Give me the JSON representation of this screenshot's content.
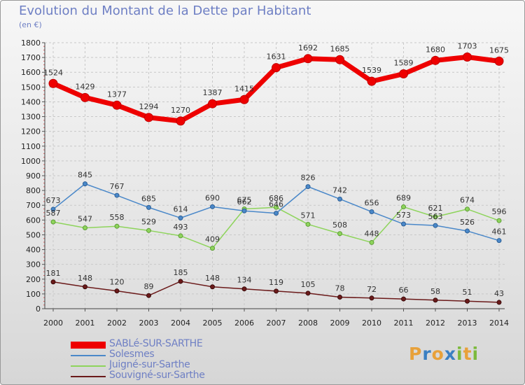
{
  "title": "Evolution du Montant de la Dette par Habitant",
  "unit": "(en €)",
  "logo": {
    "letters": [
      "P",
      "r",
      "o",
      "x",
      "i",
      "t",
      "i"
    ],
    "colors": [
      "#e8a13a",
      "#3a7fc2",
      "#e8a13a",
      "#3a7fc2",
      "#7cba3c",
      "#e8a13a",
      "#7cba3c"
    ]
  },
  "chart_data": {
    "type": "line",
    "x": [
      "2000",
      "2001",
      "2002",
      "2003",
      "2004",
      "2005",
      "2006",
      "2007",
      "2008",
      "2009",
      "2010",
      "2011",
      "2012",
      "2013",
      "2014"
    ],
    "ylim": [
      0,
      1800
    ],
    "yticks": [
      0,
      100,
      200,
      300,
      400,
      500,
      600,
      700,
      800,
      900,
      1000,
      1100,
      1200,
      1300,
      1400,
      1500,
      1600,
      1700,
      1800
    ],
    "grid": true,
    "legend_position": "bottom-left",
    "series": [
      {
        "name": "SABLé-SUR-SARTHE",
        "color": "#ee0000",
        "values": [
          1524,
          1429,
          1377,
          1294,
          1270,
          1387,
          1415,
          1631,
          1692,
          1685,
          1539,
          1589,
          1680,
          1703,
          1675
        ]
      },
      {
        "name": "Solesmes",
        "color": "#4a88c9",
        "values": [
          673,
          845,
          767,
          685,
          614,
          690,
          662,
          646,
          826,
          742,
          656,
          573,
          563,
          526,
          461
        ]
      },
      {
        "name": "Juigné-sur-Sarthe",
        "color": "#8ed45c",
        "values": [
          587,
          547,
          558,
          529,
          493,
          409,
          675,
          686,
          571,
          508,
          448,
          689,
          621,
          674,
          596
        ]
      },
      {
        "name": "Souvigné-sur-Sarthe",
        "color": "#6b1a1a",
        "values": [
          181,
          148,
          120,
          89,
          185,
          148,
          134,
          119,
          105,
          78,
          72,
          66,
          58,
          51,
          43
        ]
      }
    ]
  }
}
